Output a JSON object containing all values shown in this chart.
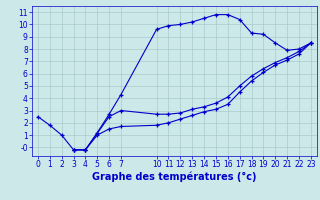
{
  "title": "Graphe des températures (°c)",
  "bg_color": "#cce8e8",
  "line_color": "#0000cc",
  "grid_color": "#aacccc",
  "x_ticks": [
    0,
    1,
    2,
    3,
    4,
    5,
    6,
    7,
    10,
    11,
    12,
    13,
    14,
    15,
    16,
    17,
    18,
    19,
    20,
    21,
    22,
    23
  ],
  "y_ticks": [
    0,
    1,
    2,
    3,
    4,
    5,
    6,
    7,
    8,
    9,
    10,
    11
  ],
  "ylim": [
    -0.7,
    11.5
  ],
  "xlim": [
    -0.5,
    23.5
  ],
  "line1_x": [
    0,
    1,
    2,
    3,
    4,
    5,
    6,
    7,
    10,
    11,
    12,
    13,
    14,
    15,
    16,
    17,
    18,
    19,
    20,
    21,
    22,
    23
  ],
  "line1_y": [
    2.5,
    1.8,
    1.0,
    -0.2,
    -0.2,
    1.2,
    2.7,
    4.3,
    9.6,
    9.9,
    10.0,
    10.2,
    10.5,
    10.8,
    10.8,
    10.4,
    9.3,
    9.2,
    8.5,
    7.9,
    8.0,
    8.5
  ],
  "line2_x": [
    3,
    4,
    6,
    7,
    10,
    11,
    12,
    13,
    14,
    15,
    16,
    17,
    18,
    19,
    20,
    21,
    22,
    23
  ],
  "line2_y": [
    -0.2,
    -0.2,
    2.5,
    3.0,
    2.7,
    2.7,
    2.8,
    3.1,
    3.3,
    3.6,
    4.1,
    5.0,
    5.8,
    6.4,
    6.9,
    7.3,
    7.8,
    8.5
  ],
  "line3_x": [
    3,
    4,
    5,
    6,
    7,
    10,
    11,
    12,
    13,
    14,
    15,
    16,
    17,
    18,
    19,
    20,
    21,
    22,
    23
  ],
  "line3_y": [
    -0.2,
    -0.2,
    1.0,
    1.5,
    1.7,
    1.8,
    2.0,
    2.3,
    2.6,
    2.9,
    3.1,
    3.5,
    4.5,
    5.4,
    6.1,
    6.7,
    7.1,
    7.6,
    8.5
  ],
  "tick_fontsize": 5.5,
  "xlabel_fontsize": 7,
  "axis_label_color": "#0000cc",
  "tick_color": "#0000cc"
}
